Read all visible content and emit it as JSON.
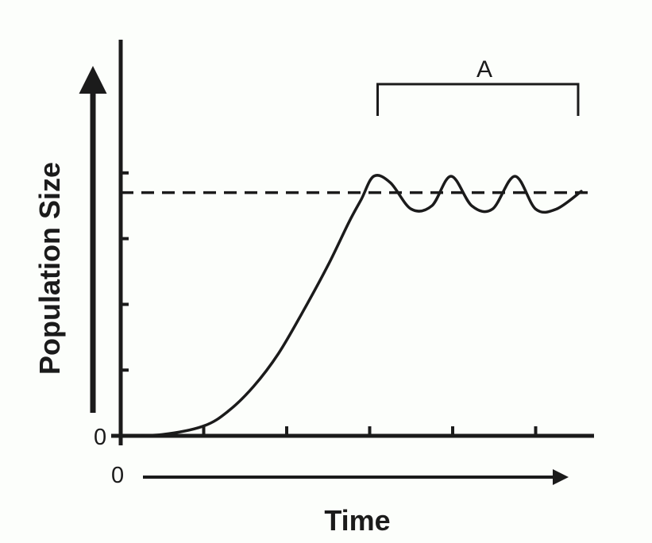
{
  "chart_data": {
    "type": "line",
    "title": "",
    "xlabel": "Time",
    "ylabel": "Population Size",
    "x_origin_label": "0",
    "y_origin_label": "0",
    "xlim": [
      0,
      5.6
    ],
    "ylim": [
      0,
      4.5
    ],
    "x_ticks": [
      1,
      2,
      3,
      4,
      5
    ],
    "y_ticks": [
      1,
      2,
      3,
      4
    ],
    "carrying_capacity_line": {
      "y": 3.7,
      "style": "dashed"
    },
    "bracket": {
      "label": "A",
      "x_range": [
        3.0,
        5.55
      ]
    },
    "series": [
      {
        "values": [
          [
            0,
            0.0
          ],
          [
            0.5,
            0.02
          ],
          [
            1.0,
            0.15
          ],
          [
            1.3,
            0.38
          ],
          [
            1.6,
            0.75
          ],
          [
            1.9,
            1.25
          ],
          [
            2.2,
            1.9
          ],
          [
            2.5,
            2.6
          ],
          [
            2.75,
            3.25
          ],
          [
            2.9,
            3.6
          ],
          [
            3.05,
            3.95
          ],
          [
            3.25,
            3.85
          ],
          [
            3.5,
            3.45
          ],
          [
            3.75,
            3.5
          ],
          [
            3.98,
            3.95
          ],
          [
            4.23,
            3.5
          ],
          [
            4.48,
            3.45
          ],
          [
            4.75,
            3.95
          ],
          [
            5.0,
            3.45
          ],
          [
            5.25,
            3.45
          ],
          [
            5.55,
            3.72
          ]
        ]
      }
    ]
  },
  "colors": {
    "stroke": "#1b1b1b",
    "background": "#fcfefb"
  }
}
